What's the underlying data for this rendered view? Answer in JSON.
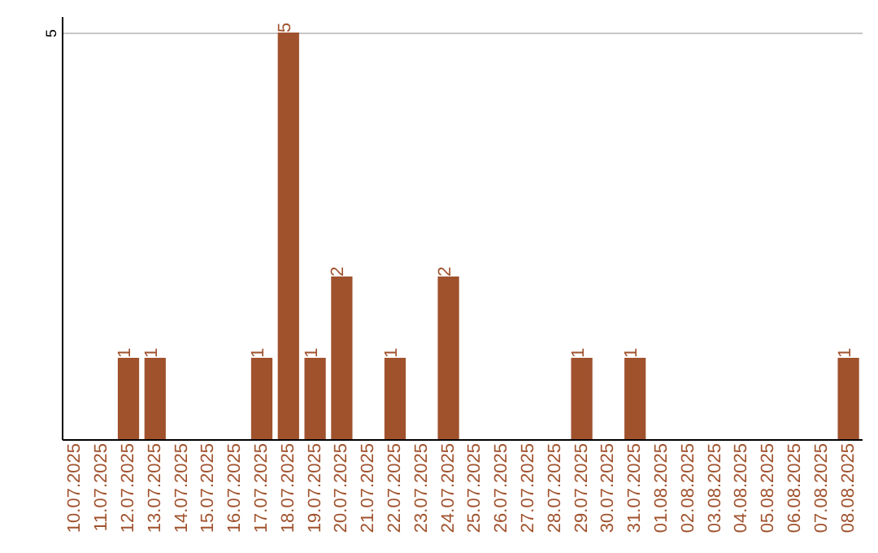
{
  "chart_data": {
    "type": "bar",
    "categories": [
      "10.07.2025",
      "11.07.2025",
      "12.07.2025",
      "13.07.2025",
      "14.07.2025",
      "15.07.2025",
      "16.07.2025",
      "17.07.2025",
      "18.07.2025",
      "19.07.2025",
      "20.07.2025",
      "21.07.2025",
      "22.07.2025",
      "23.07.2025",
      "24.07.2025",
      "25.07.2025",
      "26.07.2025",
      "27.07.2025",
      "28.07.2025",
      "29.07.2025",
      "30.07.2025",
      "31.07.2025",
      "01.08.2025",
      "02.08.2025",
      "03.08.2025",
      "04.08.2025",
      "05.08.2025",
      "06.08.2025",
      "07.08.2025",
      "08.08.2025"
    ],
    "values": [
      0,
      0,
      1,
      1,
      0,
      0,
      0,
      1,
      5,
      1,
      2,
      0,
      1,
      0,
      2,
      0,
      0,
      0,
      0,
      1,
      0,
      1,
      0,
      0,
      0,
      0,
      0,
      0,
      0,
      1
    ],
    "value_labels": [
      null,
      null,
      "1",
      "1",
      null,
      null,
      null,
      "1",
      "5",
      "1",
      "2",
      null,
      "1",
      null,
      "2",
      null,
      null,
      null,
      null,
      "1",
      null,
      "1",
      null,
      null,
      null,
      null,
      null,
      null,
      null,
      "1"
    ],
    "color": "#a0522d",
    "ylim": [
      0,
      5.2
    ],
    "yticks": [
      5
    ],
    "grid": "y"
  }
}
